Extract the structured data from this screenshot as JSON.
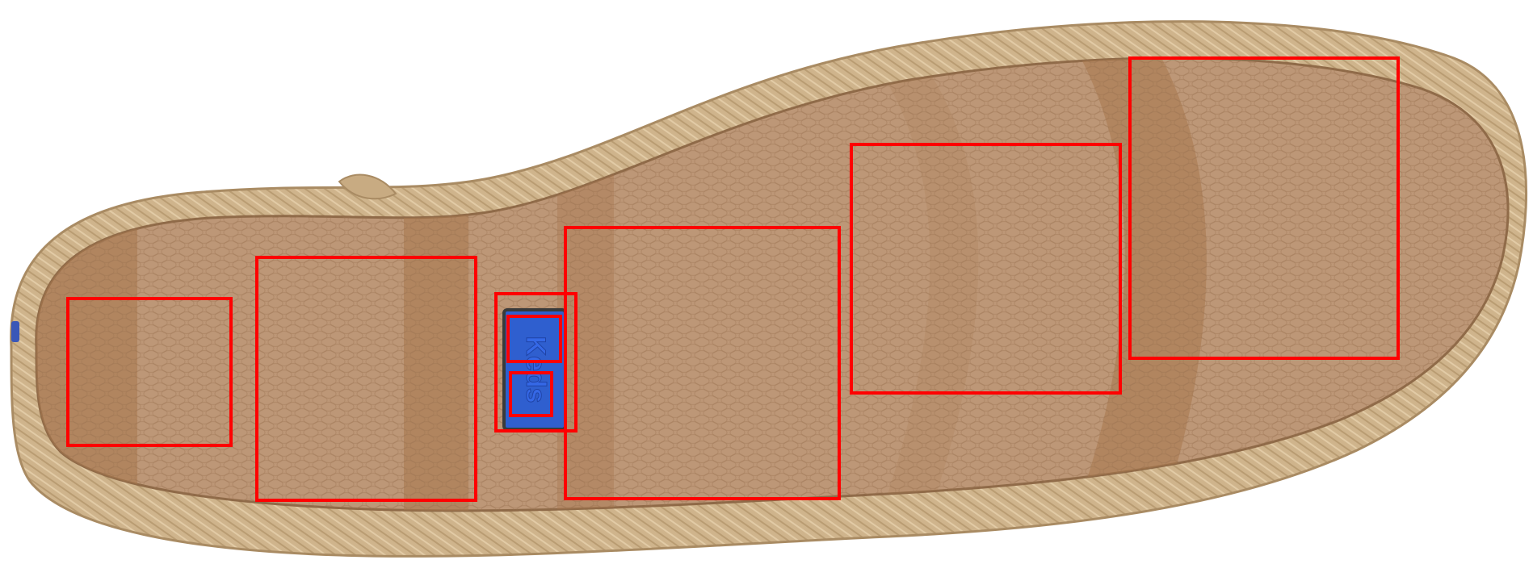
{
  "photo": {
    "subject": "shoe-sole",
    "colors": {
      "rope_border": "#cfb48c",
      "rope_shadow": "#a98b63",
      "insole_light": "#bd9777",
      "insole_dark": "#a7764d",
      "texture_pebble": "#b08866",
      "background": "#ffffff"
    }
  },
  "logo": {
    "text": "Keds",
    "background": "#2f5fcf",
    "border": "#3a3a3a",
    "letter_color": "#3568e6"
  },
  "annotations": {
    "stroke_color": "#ff0000",
    "boxes": [
      {
        "name": "heel-region"
      },
      {
        "name": "arch-rear-region"
      },
      {
        "name": "logo-region"
      },
      {
        "name": "logo-upper-region"
      },
      {
        "name": "logo-lower-region"
      },
      {
        "name": "arch-front-region"
      },
      {
        "name": "ball-region"
      },
      {
        "name": "toe-region"
      }
    ]
  }
}
